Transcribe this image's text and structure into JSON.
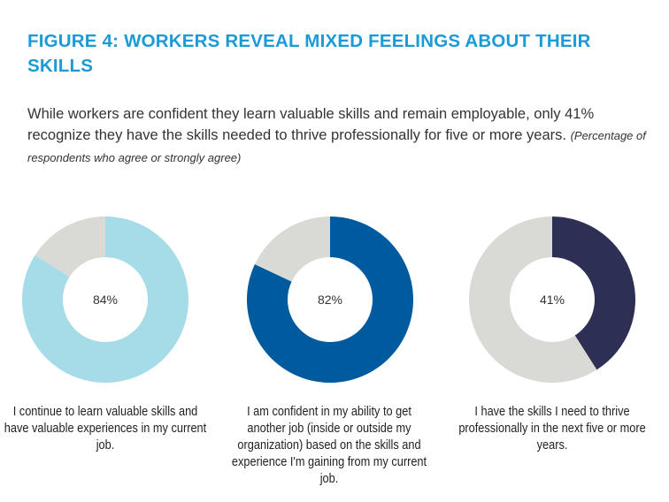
{
  "title": "FIGURE 4: WORKERS REVEAL MIXED FEELINGS ABOUT THEIR SKILLS",
  "subtitle": "While workers are confident they learn valuable skills and remain employable, only 41% recognize they have the skills needed to thrive professionally for five or more years.",
  "note": "(Percentage of respondents who agree or strongly agree)",
  "chart_data": {
    "type": "pie",
    "charts": [
      {
        "value": 84,
        "label": "84%",
        "caption": "I continue to learn valuable skills and have valuable experiences in my current job.",
        "color": "#a6dce8",
        "remainder_color": "#d9d9d6"
      },
      {
        "value": 82,
        "label": "82%",
        "caption": "I am confident in my ability to get another job (inside or outside my organization) based on the skills and experience I'm gaining from my current job.",
        "color": "#005a9e",
        "remainder_color": "#d9d9d6"
      },
      {
        "value": 41,
        "label": "41%",
        "caption": "I have the skills I need to thrive professionally in the next five or more years.",
        "color": "#2e2f55",
        "remainder_color": "#d9d9d6"
      }
    ]
  }
}
